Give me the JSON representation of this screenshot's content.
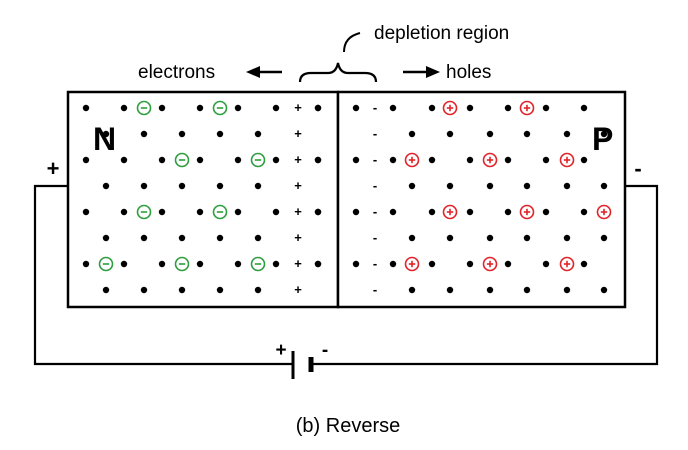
{
  "labels": {
    "depletion": "depletion region",
    "electrons": "electrons",
    "holes": "holes",
    "n_region": "N",
    "p_region": "P",
    "n_terminal": "+",
    "p_terminal": "-",
    "battery_pos": "+",
    "battery_neg": "-",
    "caption": "(b) Reverse"
  },
  "colors": {
    "electron_ring": "#2e9e3e",
    "hole_ring": "#e0242a",
    "ink": "#000000"
  }
}
